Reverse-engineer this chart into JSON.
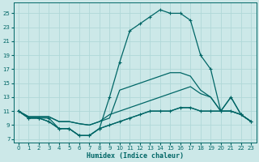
{
  "xlabel": "Humidex (Indice chaleur)",
  "bg_color": "#cce8e8",
  "grid_color": "#b0d8d8",
  "line_color": "#006666",
  "xlim": [
    -0.5,
    23.5
  ],
  "ylim": [
    6.5,
    26.5
  ],
  "xticks": [
    0,
    1,
    2,
    3,
    4,
    5,
    6,
    7,
    8,
    9,
    10,
    11,
    12,
    13,
    14,
    15,
    16,
    17,
    18,
    19,
    20,
    21,
    22,
    23
  ],
  "yticks": [
    7,
    9,
    11,
    13,
    15,
    17,
    19,
    21,
    23,
    25
  ],
  "curve_main_x": [
    0,
    1,
    2,
    3,
    4,
    5,
    6,
    7,
    8,
    9,
    10,
    11,
    12,
    13,
    14,
    15,
    16,
    17,
    18,
    19,
    20,
    21,
    22,
    23
  ],
  "curve_main_y": [
    11,
    10,
    10,
    10,
    8.5,
    8.5,
    7.5,
    7.5,
    8.5,
    13,
    18,
    22.5,
    23.5,
    24.5,
    25.5,
    25,
    25,
    24,
    19,
    17,
    11,
    13,
    10.5,
    9.5
  ],
  "curve_low_x": [
    0,
    1,
    2,
    3,
    4,
    5,
    6,
    7,
    8,
    9,
    10,
    11,
    12,
    13,
    14,
    15,
    16,
    17,
    18,
    19,
    20,
    21,
    22,
    23
  ],
  "curve_low_y": [
    11,
    10,
    10,
    9.5,
    8.5,
    8.5,
    7.5,
    7.5,
    8.5,
    9,
    9.5,
    10,
    10.5,
    11,
    11,
    11,
    11.5,
    11.5,
    11,
    11,
    11,
    11,
    10.5,
    9.5
  ],
  "curve_mid1_x": [
    0,
    1,
    2,
    3,
    4,
    5,
    6,
    7,
    8,
    9,
    10,
    11,
    12,
    13,
    14,
    15,
    16,
    17,
    18,
    19,
    20,
    21,
    22,
    23
  ],
  "curve_mid1_y": [
    11,
    10.2,
    10.2,
    10.2,
    9.5,
    9.5,
    9.2,
    9,
    9.5,
    10.5,
    11,
    11.5,
    12,
    12.5,
    13,
    13.5,
    14,
    14.5,
    13.5,
    13,
    11,
    11,
    10.5,
    9.5
  ],
  "curve_mid2_x": [
    0,
    1,
    2,
    3,
    4,
    5,
    6,
    7,
    8,
    9,
    10,
    11,
    12,
    13,
    14,
    15,
    16,
    17,
    18,
    19,
    20,
    21,
    22,
    23
  ],
  "curve_mid2_y": [
    11,
    10.2,
    10.2,
    10.2,
    9.5,
    9.5,
    9.2,
    9,
    9.5,
    10,
    14,
    14.5,
    15,
    15.5,
    16,
    16.5,
    16.5,
    16,
    14,
    13,
    11,
    13,
    10.5,
    9.5
  ],
  "markers_main_x": [
    0,
    1,
    2,
    3,
    4,
    5,
    6,
    7,
    8,
    9,
    10,
    11,
    12,
    13,
    14,
    15,
    16,
    17,
    18,
    19,
    20,
    21,
    22,
    23
  ],
  "markers_main_y": [
    11,
    10,
    10,
    10,
    8.5,
    8.5,
    7.5,
    7.5,
    8.5,
    13,
    18,
    22.5,
    23.5,
    24.5,
    25.5,
    25,
    25,
    24,
    19,
    17,
    11,
    13,
    10.5,
    9.5
  ],
  "markers_low_x": [
    0,
    1,
    2,
    3,
    4,
    5,
    6,
    7,
    8,
    9,
    10,
    11,
    12,
    13,
    14,
    15,
    16,
    17,
    18,
    19,
    20,
    21,
    22,
    23
  ],
  "markers_low_y": [
    11,
    10,
    10,
    9.5,
    8.5,
    8.5,
    7.5,
    7.5,
    8.5,
    9,
    9.5,
    10,
    10.5,
    11,
    11,
    11,
    11.5,
    11.5,
    11,
    11,
    11,
    11,
    10.5,
    9.5
  ]
}
